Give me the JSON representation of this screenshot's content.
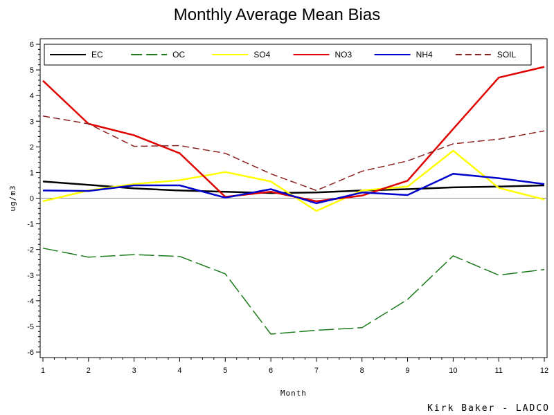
{
  "chart_data": {
    "type": "line",
    "title": "Monthly Average Mean Bias",
    "xlabel": "Month",
    "ylabel": "ug/m3",
    "x": [
      1,
      2,
      3,
      4,
      5,
      6,
      7,
      8,
      9,
      10,
      11,
      12
    ],
    "xlim": [
      1,
      12
    ],
    "ylim": [
      -6,
      6
    ],
    "yticks": [
      -6,
      -5,
      -4,
      -3,
      -2,
      -1,
      0,
      1,
      2,
      3,
      4,
      5,
      6
    ],
    "zero_line": true,
    "grid": false,
    "legend_position": "top",
    "series": [
      {
        "name": "EC",
        "color": "#000000",
        "dash": "solid",
        "values": [
          0.65,
          0.52,
          0.38,
          0.3,
          0.25,
          0.2,
          0.22,
          0.3,
          0.35,
          0.42,
          0.45,
          0.5
        ]
      },
      {
        "name": "OC",
        "color": "#1a7a1a",
        "dash": "dashed",
        "values": [
          -1.95,
          -2.3,
          -2.2,
          -2.27,
          -2.95,
          -5.3,
          -5.15,
          -5.05,
          -3.95,
          -2.25,
          -3.0,
          -2.78
        ]
      },
      {
        "name": "SO4",
        "color": "#ffff00",
        "dash": "solid",
        "values": [
          -0.12,
          0.3,
          0.55,
          0.7,
          1.02,
          0.65,
          -0.5,
          0.3,
          0.45,
          1.85,
          0.4,
          -0.05
        ]
      },
      {
        "name": "NO3",
        "color": "#e00000",
        "dash": "solid",
        "values": [
          4.58,
          2.9,
          2.45,
          1.75,
          0.05,
          0.25,
          -0.12,
          0.1,
          0.68,
          2.7,
          4.7,
          5.12
        ]
      },
      {
        "name": "NH4",
        "color": "#0000cc",
        "dash": "solid",
        "values": [
          0.3,
          0.28,
          0.5,
          0.5,
          0.02,
          0.35,
          -0.2,
          0.22,
          0.12,
          0.95,
          0.78,
          0.55
        ]
      },
      {
        "name": "SOIL",
        "color": "#8b2020",
        "dash": "dashed",
        "values": [
          3.2,
          2.9,
          2.02,
          2.05,
          1.75,
          0.95,
          0.3,
          1.05,
          1.45,
          2.12,
          2.3,
          2.62
        ]
      }
    ]
  },
  "footer": {
    "credit": "Kirk Baker - LADCO"
  }
}
